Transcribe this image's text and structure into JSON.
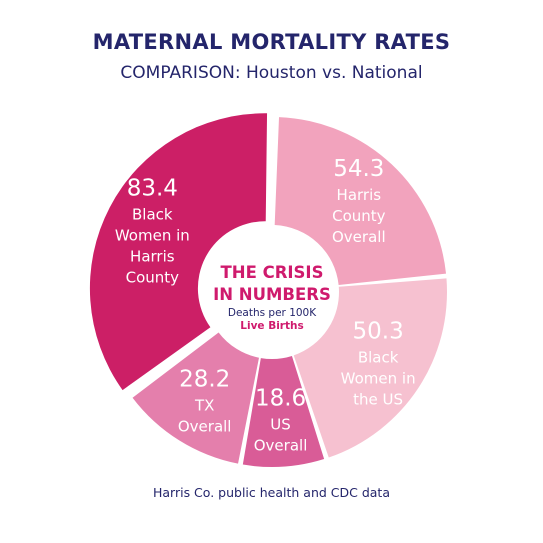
{
  "header": {
    "title": "MATERNAL MORTALITY RATES",
    "subtitle": "COMPARISON: Houston vs. National"
  },
  "center": {
    "line1": "THE CRISIS",
    "line2": "IN NUMBERS",
    "line3": "Deaths per 100K",
    "line4": "Live Births"
  },
  "footer": {
    "source": "Harris Co. public health and CDC data"
  },
  "chart_data": {
    "type": "pie",
    "style": "donut",
    "title": "MATERNAL MORTALITY RATES",
    "subtitle": "COMPARISON: Houston vs. National",
    "unit": "Deaths per 100K Live Births",
    "slices": [
      {
        "value": 54.3,
        "label_lines": [
          "Harris",
          "County",
          "Overall"
        ],
        "color": "#f2a3bd"
      },
      {
        "value": 50.3,
        "label_lines": [
          "Black",
          "Women in",
          "the US"
        ],
        "color": "#f6c1d0"
      },
      {
        "value": 18.6,
        "label_lines": [
          "US",
          "Overall"
        ],
        "color": "#d95c97"
      },
      {
        "value": 28.2,
        "label_lines": [
          "TX",
          "Overall"
        ],
        "color": "#e47fac"
      },
      {
        "value": 83.4,
        "label_lines": [
          "Black",
          "Women in",
          "Harris",
          "County"
        ],
        "color": "#cc1f66"
      }
    ]
  }
}
